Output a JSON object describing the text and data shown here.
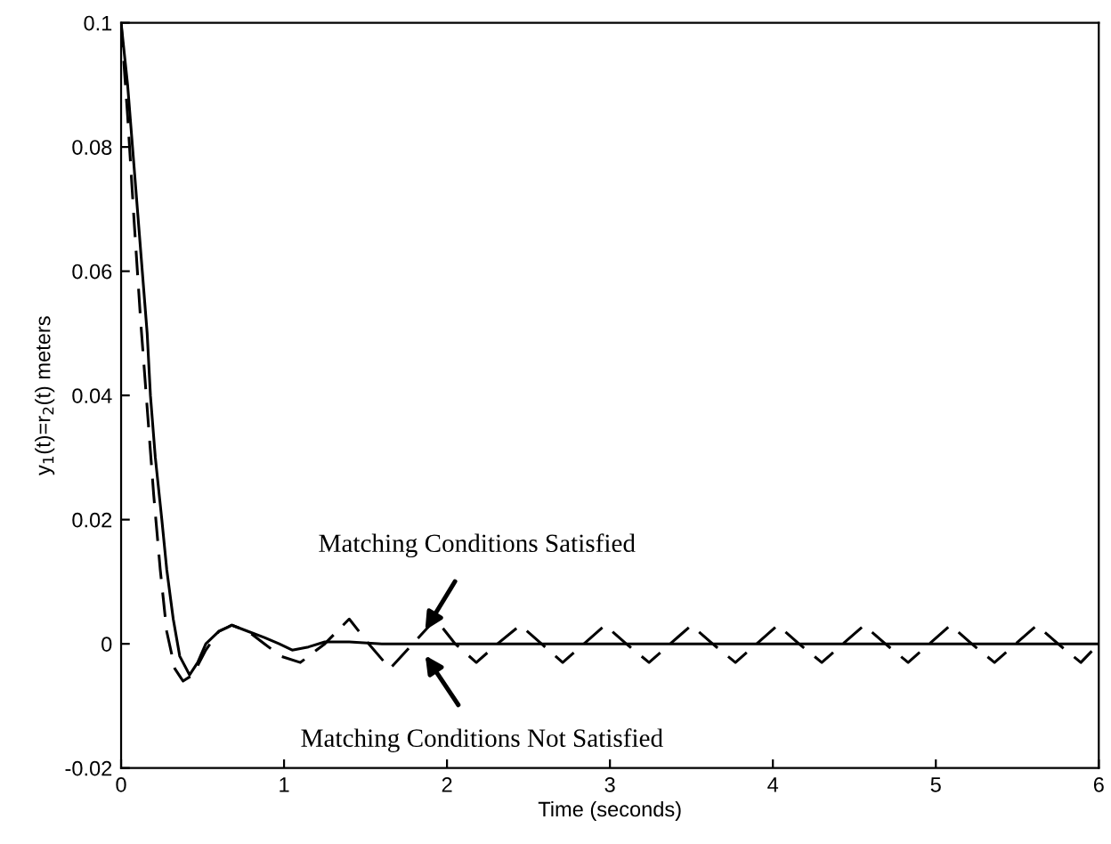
{
  "chart_data": {
    "type": "line",
    "xlabel": "Time (seconds)",
    "ylabel": "y$_{1}$(t)=r$_{2}$(t) meters",
    "xlim": [
      0,
      6
    ],
    "ylim": [
      -0.02,
      0.1
    ],
    "xticks": [
      0,
      1,
      2,
      3,
      4,
      5,
      6
    ],
    "yticks": [
      {
        "value": -0.02,
        "label": "-0.02"
      },
      0,
      0.02,
      0.04,
      0.06,
      0.08,
      0.1
    ],
    "marker": "none",
    "series": [
      {
        "color": "#000000",
        "line_style": "solid",
        "x": [
          0,
          0.04,
          0.07,
          0.1,
          0.13,
          0.16,
          0.18,
          0.21,
          0.25,
          0.28,
          0.32,
          0.36,
          0.42,
          0.47,
          0.52,
          0.6,
          0.68,
          0.78,
          0.88,
          0.97,
          1.05,
          1.15,
          1.25,
          1.4,
          1.6,
          2.0,
          3.0,
          4.0,
          5.0,
          6.0
        ],
        "values": [
          0.1,
          0.09,
          0.08,
          0.07,
          0.06,
          0.05,
          0.04,
          0.03,
          0.02,
          0.012,
          0.004,
          -0.002,
          -0.005,
          -0.003,
          0.0,
          0.002,
          0.003,
          0.002,
          0.001,
          0.0,
          -0.001,
          -0.0005,
          0.0003,
          0.0003,
          0.0,
          0.0,
          0.0,
          0.0,
          0.0,
          0.0
        ]
      },
      {
        "color": "#000000",
        "line_style": "dashed",
        "x": [
          0,
          0.04,
          0.08,
          0.12,
          0.16,
          0.2,
          0.24,
          0.28,
          0.33,
          0.38,
          0.44,
          0.52,
          0.6,
          0.68,
          0.78,
          0.88,
          0.98,
          1.1,
          1.25,
          1.4,
          1.52,
          1.65,
          1.79,
          1.93,
          2.05,
          2.18,
          2.31,
          2.45,
          2.58,
          2.71,
          2.84,
          2.97,
          3.1,
          3.24,
          3.37,
          3.5,
          3.63,
          3.77,
          3.9,
          4.03,
          4.16,
          4.3,
          4.43,
          4.56,
          4.69,
          4.83,
          4.96,
          5.09,
          5.22,
          5.36,
          5.49,
          5.62,
          5.75,
          5.89,
          6.0
        ],
        "values": [
          0.1,
          0.085,
          0.068,
          0.052,
          0.038,
          0.024,
          0.012,
          0.002,
          -0.004,
          -0.006,
          -0.005,
          -0.001,
          0.002,
          0.003,
          0.002,
          0.0,
          -0.002,
          -0.003,
          0.0,
          0.004,
          0.0,
          -0.004,
          0.0,
          0.004,
          0.0,
          -0.003,
          0.0,
          0.003,
          0.0,
          -0.003,
          0.0,
          0.003,
          0.0,
          -0.003,
          0.0,
          0.003,
          0.0,
          -0.003,
          0.0,
          0.003,
          0.0,
          -0.003,
          0.0,
          0.003,
          0.0,
          -0.003,
          0.0,
          0.003,
          0.0,
          -0.003,
          0.0,
          0.003,
          0.0,
          -0.003,
          0.0
        ]
      }
    ],
    "annotations": [
      {
        "text": "Matching Conditions Satisfied",
        "x": 1.85,
        "y": 0.0015
      },
      {
        "text": "Matching Conditions Not Satisfied",
        "x": 1.85,
        "y": -0.0012
      }
    ]
  }
}
